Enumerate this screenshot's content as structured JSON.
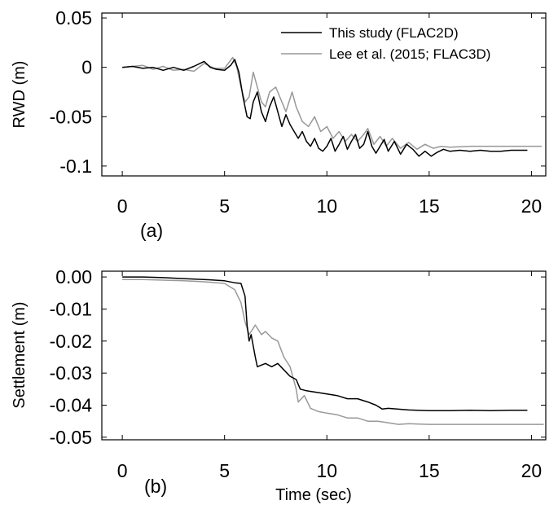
{
  "chart_data": [
    {
      "type": "line",
      "panel_label": "(a)",
      "ylabel": "RWD (m)",
      "xlabel": "",
      "xlim": [
        -1,
        20.7
      ],
      "ylim": [
        -0.11,
        0.055
      ],
      "x_ticks": [
        0,
        5,
        10,
        15,
        20
      ],
      "x_tick_labels": [
        "0",
        "5",
        "10",
        "15",
        "20"
      ],
      "y_ticks": [
        0.05,
        0,
        -0.05,
        -0.1
      ],
      "y_tick_labels": [
        "0.05",
        "0",
        "-0.05",
        "-0.1"
      ],
      "legend_position": "top-right",
      "series": [
        {
          "name": "This study (FLAC2D)",
          "color": "#000000",
          "points": [
            [
              0,
              0
            ],
            [
              0.5,
              0.001
            ],
            [
              1,
              -0.001
            ],
            [
              1.5,
              0
            ],
            [
              2,
              -0.003
            ],
            [
              2.5,
              0
            ],
            [
              3,
              -0.003
            ],
            [
              3.5,
              0.001
            ],
            [
              4,
              0.006
            ],
            [
              4.3,
              0
            ],
            [
              4.6,
              -0.002
            ],
            [
              5,
              -0.003
            ],
            [
              5.3,
              0.002
            ],
            [
              5.5,
              0.008
            ],
            [
              5.7,
              -0.005
            ],
            [
              5.9,
              -0.03
            ],
            [
              6.1,
              -0.05
            ],
            [
              6.25,
              -0.052
            ],
            [
              6.4,
              -0.035
            ],
            [
              6.6,
              -0.025
            ],
            [
              6.8,
              -0.045
            ],
            [
              7,
              -0.055
            ],
            [
              7.2,
              -0.04
            ],
            [
              7.4,
              -0.03
            ],
            [
              7.6,
              -0.045
            ],
            [
              7.8,
              -0.06
            ],
            [
              8,
              -0.048
            ],
            [
              8.2,
              -0.058
            ],
            [
              8.4,
              -0.065
            ],
            [
              8.6,
              -0.072
            ],
            [
              8.8,
              -0.065
            ],
            [
              9,
              -0.075
            ],
            [
              9.2,
              -0.08
            ],
            [
              9.4,
              -0.072
            ],
            [
              9.6,
              -0.082
            ],
            [
              9.8,
              -0.085
            ],
            [
              10,
              -0.08
            ],
            [
              10.2,
              -0.072
            ],
            [
              10.4,
              -0.085
            ],
            [
              10.6,
              -0.078
            ],
            [
              10.8,
              -0.07
            ],
            [
              11,
              -0.083
            ],
            [
              11.2,
              -0.075
            ],
            [
              11.4,
              -0.068
            ],
            [
              11.6,
              -0.082
            ],
            [
              11.8,
              -0.078
            ],
            [
              12,
              -0.065
            ],
            [
              12.2,
              -0.08
            ],
            [
              12.4,
              -0.087
            ],
            [
              12.6,
              -0.08
            ],
            [
              12.8,
              -0.073
            ],
            [
              13,
              -0.085
            ],
            [
              13.3,
              -0.075
            ],
            [
              13.6,
              -0.088
            ],
            [
              13.9,
              -0.078
            ],
            [
              14.2,
              -0.083
            ],
            [
              14.5,
              -0.09
            ],
            [
              14.8,
              -0.085
            ],
            [
              15.1,
              -0.09
            ],
            [
              15.4,
              -0.086
            ],
            [
              15.7,
              -0.083
            ],
            [
              16,
              -0.085
            ],
            [
              16.5,
              -0.084
            ],
            [
              17,
              -0.085
            ],
            [
              17.5,
              -0.084
            ],
            [
              18,
              -0.085
            ],
            [
              18.5,
              -0.085
            ],
            [
              19,
              -0.084
            ],
            [
              19.5,
              -0.084
            ],
            [
              19.8,
              -0.084
            ]
          ]
        },
        {
          "name": "Lee et al. (2015; FLAC3D)",
          "color": "#999999",
          "points": [
            [
              0,
              0
            ],
            [
              0.5,
              0.001
            ],
            [
              1,
              0.002
            ],
            [
              1.5,
              -0.002
            ],
            [
              2,
              0.001
            ],
            [
              2.5,
              -0.003
            ],
            [
              3,
              -0.002
            ],
            [
              3.5,
              -0.004
            ],
            [
              4,
              0.004
            ],
            [
              4.5,
              -0.001
            ],
            [
              5,
              -0.001
            ],
            [
              5.4,
              0.01
            ],
            [
              5.6,
              0
            ],
            [
              5.8,
              -0.02
            ],
            [
              6,
              -0.035
            ],
            [
              6.2,
              -0.03
            ],
            [
              6.4,
              -0.005
            ],
            [
              6.6,
              -0.02
            ],
            [
              6.8,
              -0.035
            ],
            [
              7,
              -0.04
            ],
            [
              7.2,
              -0.025
            ],
            [
              7.5,
              -0.02
            ],
            [
              7.8,
              -0.035
            ],
            [
              8,
              -0.045
            ],
            [
              8.3,
              -0.025
            ],
            [
              8.5,
              -0.04
            ],
            [
              8.8,
              -0.055
            ],
            [
              9.1,
              -0.06
            ],
            [
              9.4,
              -0.05
            ],
            [
              9.7,
              -0.065
            ],
            [
              10,
              -0.06
            ],
            [
              10.3,
              -0.072
            ],
            [
              10.6,
              -0.065
            ],
            [
              10.9,
              -0.075
            ],
            [
              11.2,
              -0.068
            ],
            [
              11.5,
              -0.075
            ],
            [
              11.8,
              -0.068
            ],
            [
              12,
              -0.062
            ],
            [
              12.3,
              -0.078
            ],
            [
              12.6,
              -0.07
            ],
            [
              12.9,
              -0.08
            ],
            [
              13.2,
              -0.072
            ],
            [
              13.6,
              -0.082
            ],
            [
              14,
              -0.076
            ],
            [
              14.4,
              -0.083
            ],
            [
              14.8,
              -0.078
            ],
            [
              15.2,
              -0.082
            ],
            [
              15.6,
              -0.08
            ],
            [
              16,
              -0.081
            ],
            [
              17,
              -0.08
            ],
            [
              18,
              -0.08
            ],
            [
              19,
              -0.08
            ],
            [
              20,
              -0.08
            ],
            [
              20.5,
              -0.08
            ]
          ]
        }
      ]
    },
    {
      "type": "line",
      "panel_label": "(b)",
      "ylabel": "Settlement (m)",
      "xlabel": "Time (sec)",
      "xlim": [
        -1,
        20.7
      ],
      "ylim": [
        -0.0508,
        0.0018
      ],
      "x_ticks": [
        0,
        5,
        10,
        15,
        20
      ],
      "x_tick_labels": [
        "0",
        "5",
        "10",
        "15",
        "20"
      ],
      "y_ticks": [
        0,
        -0.01,
        -0.02,
        -0.03,
        -0.04,
        -0.05
      ],
      "y_tick_labels": [
        "0.00",
        "-0.01",
        "-0.02",
        "-0.03",
        "-0.04",
        "-0.05"
      ],
      "series": [
        {
          "name": "This study (FLAC2D)",
          "color": "#000000",
          "points": [
            [
              0,
              0
            ],
            [
              1,
              0
            ],
            [
              2,
              -0.0002
            ],
            [
              3,
              -0.0005
            ],
            [
              4,
              -0.0008
            ],
            [
              5,
              -0.0012
            ],
            [
              5.5,
              -0.0018
            ],
            [
              5.8,
              -0.002
            ],
            [
              6,
              -0.006
            ],
            [
              6.1,
              -0.015
            ],
            [
              6.2,
              -0.02
            ],
            [
              6.3,
              -0.018
            ],
            [
              6.5,
              -0.025
            ],
            [
              6.6,
              -0.028
            ],
            [
              7,
              -0.027
            ],
            [
              7.3,
              -0.028
            ],
            [
              7.6,
              -0.027
            ],
            [
              7.9,
              -0.029
            ],
            [
              8.2,
              -0.031
            ],
            [
              8.5,
              -0.032
            ],
            [
              8.7,
              -0.035
            ],
            [
              9,
              -0.0355
            ],
            [
              9.5,
              -0.036
            ],
            [
              10,
              -0.0365
            ],
            [
              10.5,
              -0.037
            ],
            [
              11,
              -0.038
            ],
            [
              11.5,
              -0.038
            ],
            [
              12,
              -0.039
            ],
            [
              12.4,
              -0.04
            ],
            [
              12.7,
              -0.0412
            ],
            [
              13,
              -0.041
            ],
            [
              14,
              -0.0415
            ],
            [
              15,
              -0.0417
            ],
            [
              16,
              -0.0417
            ],
            [
              17,
              -0.0416
            ],
            [
              18,
              -0.0417
            ],
            [
              19,
              -0.0416
            ],
            [
              19.8,
              -0.0416
            ]
          ]
        },
        {
          "name": "Lee et al. (2015; FLAC3D)",
          "color": "#999999",
          "points": [
            [
              0,
              -0.0008
            ],
            [
              1,
              -0.0008
            ],
            [
              2,
              -0.001
            ],
            [
              3,
              -0.0012
            ],
            [
              4,
              -0.0015
            ],
            [
              5,
              -0.002
            ],
            [
              5.5,
              -0.004
            ],
            [
              5.8,
              -0.008
            ],
            [
              6,
              -0.014
            ],
            [
              6.2,
              -0.018
            ],
            [
              6.5,
              -0.015
            ],
            [
              6.8,
              -0.018
            ],
            [
              7,
              -0.017
            ],
            [
              7.3,
              -0.019
            ],
            [
              7.6,
              -0.02
            ],
            [
              7.9,
              -0.025
            ],
            [
              8.2,
              -0.028
            ],
            [
              8.5,
              -0.035
            ],
            [
              8.6,
              -0.039
            ],
            [
              8.9,
              -0.037
            ],
            [
              9.2,
              -0.041
            ],
            [
              9.6,
              -0.042
            ],
            [
              10,
              -0.0425
            ],
            [
              10.5,
              -0.043
            ],
            [
              11,
              -0.044
            ],
            [
              11.5,
              -0.044
            ],
            [
              12,
              -0.045
            ],
            [
              12.5,
              -0.045
            ],
            [
              13,
              -0.0455
            ],
            [
              13.5,
              -0.046
            ],
            [
              14,
              -0.0458
            ],
            [
              15,
              -0.046
            ],
            [
              16,
              -0.046
            ],
            [
              17,
              -0.046
            ],
            [
              18,
              -0.046
            ],
            [
              19,
              -0.046
            ],
            [
              20,
              -0.046
            ],
            [
              20.6,
              -0.046
            ]
          ]
        }
      ]
    }
  ]
}
